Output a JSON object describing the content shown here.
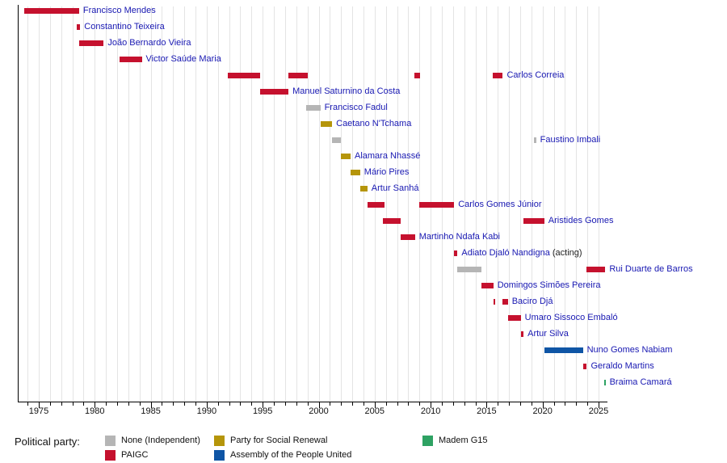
{
  "chart_data": {
    "type": "gantt-timeline",
    "subject": "Prime Ministers timeline by political party",
    "x_axis": {
      "grid_first_year": 1974,
      "grid_last_year": 2025,
      "major_tick_years": [
        1975,
        1980,
        1985,
        1990,
        1995,
        2000,
        2005,
        2010,
        2015,
        2020,
        2025
      ],
      "minor_tick_interval": 1,
      "range": [
        1973.1,
        2025.8
      ],
      "gridlines": true
    },
    "parties": {
      "none": {
        "label": "None (Independent)",
        "color": "#b5b5b5"
      },
      "paigc": {
        "label": "PAIGC",
        "color": "#c5112e"
      },
      "prs": {
        "label": "Party for Social Renewal",
        "color": "#b5950a"
      },
      "apu": {
        "label": "Assembly of the People United",
        "color": "#0f55a5"
      },
      "madem": {
        "label": "Madem G15",
        "color": "#2ea263"
      }
    },
    "people": [
      {
        "name": "Francisco Mendes",
        "terms": [
          {
            "party": "paigc",
            "start": 1973.7,
            "end": 1978.6
          }
        ]
      },
      {
        "name": "Constantino Teixeira",
        "terms": [
          {
            "party": "paigc",
            "start": 1978.4,
            "end": 1978.7
          }
        ]
      },
      {
        "name": "João Bernardo Vieira",
        "terms": [
          {
            "party": "paigc",
            "start": 1978.62,
            "end": 1980.8
          }
        ]
      },
      {
        "name": "Victor Saúde Maria",
        "terms": [
          {
            "party": "paigc",
            "start": 1982.2,
            "end": 1984.2
          }
        ]
      },
      {
        "name": "Carlos Correia",
        "terms": [
          {
            "party": "paigc",
            "start": 1991.9,
            "end": 1994.8
          },
          {
            "party": "paigc",
            "start": 1997.3,
            "end": 1999.0
          },
          {
            "party": "paigc",
            "start": 2008.55,
            "end": 2009.05
          },
          {
            "party": "paigc",
            "start": 2015.55,
            "end": 2016.45
          }
        ]
      },
      {
        "name": "Manuel Saturnino da Costa",
        "terms": [
          {
            "party": "paigc",
            "start": 1994.8,
            "end": 1997.3
          }
        ]
      },
      {
        "name": "Francisco Fadul",
        "terms": [
          {
            "party": "none",
            "start": 1998.9,
            "end": 2000.15
          }
        ]
      },
      {
        "name": "Caetano N'Tchama",
        "terms": [
          {
            "party": "prs",
            "start": 2000.15,
            "end": 2001.2
          }
        ]
      },
      {
        "name": "Faustino Imbali",
        "terms": [
          {
            "party": "none",
            "start": 2001.2,
            "end": 2001.95
          },
          {
            "party": "none",
            "start": 2019.25,
            "end": 2019.42
          }
        ]
      },
      {
        "name": "Alamara Nhassé",
        "terms": [
          {
            "party": "prs",
            "start": 2001.95,
            "end": 2002.85
          }
        ]
      },
      {
        "name": "Mário Pires",
        "terms": [
          {
            "party": "prs",
            "start": 2002.85,
            "end": 2003.7
          }
        ]
      },
      {
        "name": "Artur Sanhá",
        "terms": [
          {
            "party": "prs",
            "start": 2003.7,
            "end": 2004.35
          }
        ]
      },
      {
        "name": "Carlos Gomes Júnior",
        "terms": [
          {
            "party": "paigc",
            "start": 2004.35,
            "end": 2005.9
          },
          {
            "party": "paigc",
            "start": 2009.0,
            "end": 2012.1
          }
        ]
      },
      {
        "name": "Aristides Gomes",
        "terms": [
          {
            "party": "paigc",
            "start": 2005.75,
            "end": 2007.3
          },
          {
            "party": "paigc",
            "start": 2018.3,
            "end": 2020.15
          }
        ]
      },
      {
        "name": "Martinho Ndafa Kabi",
        "terms": [
          {
            "party": "paigc",
            "start": 2007.3,
            "end": 2008.6
          }
        ]
      },
      {
        "name": "Adiato Djaló Nandigna",
        "suffix": " (acting)",
        "terms": [
          {
            "party": "paigc",
            "start": 2012.1,
            "end": 2012.4
          }
        ]
      },
      {
        "name": "Rui Duarte de Barros",
        "terms": [
          {
            "party": "none",
            "start": 2012.4,
            "end": 2014.55
          },
          {
            "party": "paigc",
            "start": 2023.95,
            "end": 2025.6
          }
        ]
      },
      {
        "name": "Domingos Simões Pereira",
        "terms": [
          {
            "party": "paigc",
            "start": 2014.55,
            "end": 2015.6
          }
        ]
      },
      {
        "name": "Baciro Djá",
        "terms": [
          {
            "party": "paigc",
            "start": 2015.62,
            "end": 2015.78
          },
          {
            "party": "paigc",
            "start": 2016.4,
            "end": 2016.9
          }
        ]
      },
      {
        "name": "Umaro Sissoco Embaló",
        "terms": [
          {
            "party": "paigc",
            "start": 2016.9,
            "end": 2018.05
          }
        ]
      },
      {
        "name": "Artur Silva",
        "terms": [
          {
            "party": "paigc",
            "start": 2018.05,
            "end": 2018.3
          }
        ]
      },
      {
        "name": "Nuno Gomes Nabiam",
        "terms": [
          {
            "party": "apu",
            "start": 2020.15,
            "end": 2023.6
          }
        ]
      },
      {
        "name": "Geraldo Martins",
        "terms": [
          {
            "party": "paigc",
            "start": 2023.6,
            "end": 2023.95
          }
        ]
      },
      {
        "name": "Braima Camará",
        "terms": [
          {
            "party": "madem",
            "start": 2025.48,
            "end": 2025.62
          }
        ]
      }
    ]
  },
  "legend": {
    "title": "Political party:",
    "columns": [
      [
        "none",
        "paigc"
      ],
      [
        "prs",
        "apu"
      ],
      [
        "madem"
      ]
    ]
  },
  "colors": {
    "person_link": "#1818b2",
    "acting_text": "#222222",
    "gridline": "#e4e4e4",
    "axis": "#000000"
  }
}
